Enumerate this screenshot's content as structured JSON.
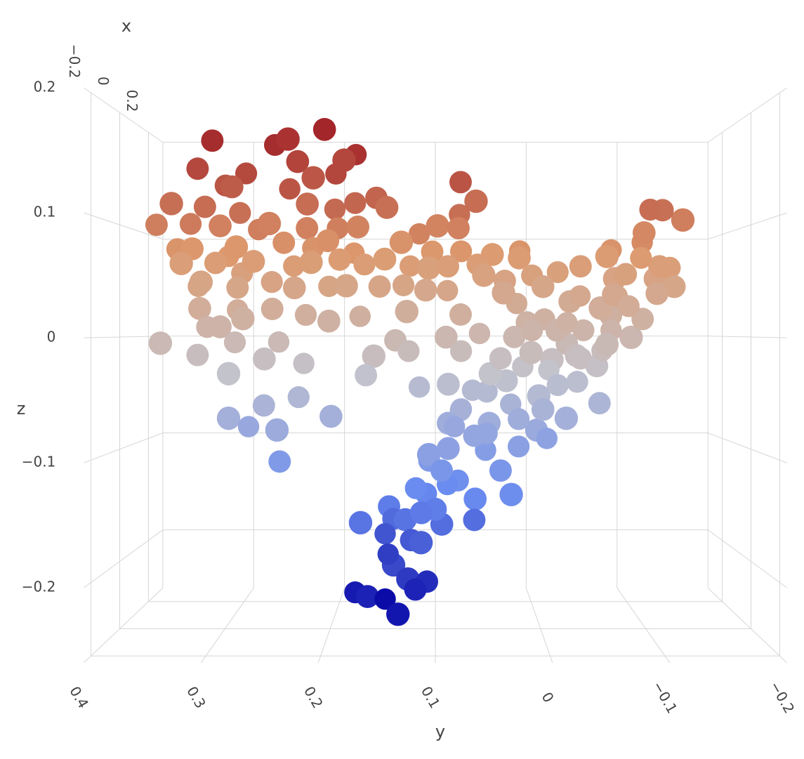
{
  "chart_data": {
    "type": "scatter3d",
    "xlabel": "x",
    "ylabel": "y",
    "zlabel": "z",
    "xlim": [
      -0.25,
      0.3
    ],
    "ylim": [
      -0.2,
      0.4
    ],
    "zlim": [
      -0.26,
      0.2
    ],
    "xticks": [
      {
        "value": -0.2,
        "label": "−0.2"
      },
      0,
      0.2
    ],
    "yticks": [
      {
        "value": -0.2,
        "label": "−0.2"
      },
      {
        "value": -0.1,
        "label": "−0.1"
      },
      0,
      0.1,
      0.2,
      0.3,
      0.4
    ],
    "zticks": [
      {
        "value": -0.2,
        "label": "−0.2"
      },
      {
        "value": -0.1,
        "label": "−0.1"
      },
      0,
      0.1,
      0.2
    ],
    "grid": true,
    "colorscale": [
      "#0b0ba8",
      "#6a8cf0",
      "#c3c3cc",
      "#dd9a6e",
      "#a3262a"
    ],
    "x": [
      0,
      0.05,
      -0.05,
      0.1,
      -0.1,
      0,
      0.05,
      -0.05,
      0.1,
      -0.1,
      0,
      0.05,
      -0.05,
      0.1,
      -0.1,
      0,
      0.05,
      -0.05,
      0.1,
      -0.1,
      0,
      0.05,
      -0.05,
      0.1,
      -0.1,
      0,
      0.05,
      -0.05,
      0.1,
      -0.1,
      0,
      0.05,
      -0.05,
      0.1,
      -0.1,
      0,
      0.05,
      -0.05,
      0.1,
      -0.1,
      0,
      0.05,
      -0.05,
      0.1,
      -0.1,
      0,
      0.05,
      -0.05,
      0.1,
      -0.1,
      0,
      0.05,
      -0.05,
      0.1,
      -0.1,
      0,
      0.05,
      -0.05,
      0.1,
      -0.1,
      0,
      0.05,
      -0.05,
      0.1,
      -0.1,
      0,
      0.05,
      -0.05,
      0.1,
      -0.1,
      0,
      0.05,
      -0.05,
      0.1,
      -0.1,
      0,
      0.05,
      -0.05,
      0.1,
      -0.1,
      0,
      0.05,
      -0.05,
      0.1,
      -0.1,
      0,
      0.05,
      -0.05,
      0.1,
      -0.1,
      0,
      0.05,
      -0.05,
      0.1,
      -0.1,
      0,
      0.05,
      -0.05,
      0.1,
      -0.1,
      0,
      0.05,
      -0.05,
      0.1,
      -0.1,
      0,
      0.05,
      -0.05,
      0.1,
      -0.1,
      0,
      0.05,
      -0.05,
      0.1,
      -0.1,
      0,
      0.05,
      -0.05,
      0.1,
      -0.1,
      0,
      0.05,
      -0.05,
      0.1,
      -0.1,
      0,
      0.05,
      -0.05,
      0.1,
      -0.1,
      0,
      0.05,
      -0.05,
      0.1,
      -0.1,
      0,
      0.05,
      -0.05,
      0.1,
      -0.1,
      0,
      0.05,
      -0.05,
      0.1,
      -0.1,
      0,
      0.05,
      -0.05,
      0.1,
      -0.1,
      0,
      0.05,
      -0.05,
      0.1,
      -0.1,
      0,
      0.05,
      -0.05,
      0.1,
      -0.1,
      0,
      0.05,
      -0.05,
      0.1,
      -0.1,
      0,
      0.05,
      -0.05,
      0.1,
      -0.1,
      0,
      0.05,
      -0.05,
      0.1,
      -0.1,
      0,
      0.05,
      -0.05,
      0.1,
      -0.1,
      0,
      0.05,
      -0.05,
      0.1,
      -0.1,
      0,
      0.05,
      -0.05,
      0.1,
      -0.1,
      0,
      0.05,
      -0.05,
      0.1,
      -0.1,
      0,
      0.05,
      -0.05,
      0.1,
      -0.1,
      0,
      0.05,
      -0.05,
      0.1,
      -0.1,
      0,
      0.05,
      -0.05,
      0.1,
      -0.1,
      0,
      0.05,
      -0.05
    ],
    "y": [
      0.312,
      0.256,
      0.203,
      0.179,
      0.234,
      0.326,
      0.284,
      0.228,
      0.199,
      0.183,
      0.076,
      0.304,
      0.289,
      0.245,
      0.211,
      0.156,
      0.178,
      0.219,
      0.2,
      0.34,
      0.319,
      0.29,
      0.145,
      0.076,
      0.063,
      0.365,
      0.338,
      0.3,
      0.276,
      0.251,
      0.222,
      0.195,
      0.172,
      0.116,
      0.098,
      0.078,
      0.351,
      0.326,
      0.306,
      0.281,
      0.244,
      0.219,
      0.2,
      0.181,
      0.131,
      0.103,
      0.075,
      0.047,
      0.016,
      0.331,
      0.309,
      0.288,
      0.269,
      0.241,
      0.213,
      0.191,
      0.169,
      0.147,
      0.125,
      0.106,
      0.088,
      0.059,
      0.022,
      0.336,
      0.313,
      0.288,
      0.259,
      0.231,
      0.206,
      0.181,
      0.153,
      0.131,
      0.109,
      0.088,
      0.056,
      0.034,
      0.006,
      0.319,
      0.297,
      0.275,
      0.255,
      0.226,
      0.199,
      0.175,
      0.126,
      0.076,
      0.322,
      0.3,
      0.256,
      0.35,
      0.326,
      0.295,
      0.259,
      0.231,
      0.156,
      0.138,
      0.126,
      0.09,
      0.056,
      0.288,
      0.166,
      0.075,
      0.088,
      0.116,
      0.288,
      0.263,
      0.233,
      0.197,
      0.286,
      0.244,
      0.248,
      0.106,
      0.088,
      0.075,
      0.168,
      0.144,
      0.141,
      0.128,
      0.15,
      0.138,
      0.123,
      0.109,
      0.094,
      0.147,
      0.125,
      0.108,
      0.178,
      0.163,
      0.15,
      0.134,
      0.119,
      0.078,
      0.063,
      0.05,
      0.031,
      0.038,
      0.019,
      0.006,
      -0.011,
      -0.019,
      -0.056,
      -0.038,
      -0.05,
      -0.066,
      -0.078,
      -0.097,
      0.05,
      0.034,
      0.013,
      -0.006,
      -0.025,
      -0.044,
      -0.063,
      -0.081,
      -0.1,
      -0.113,
      -0.128,
      -0.122,
      -0.106,
      -0.125,
      -0.116,
      -0.109,
      -0.094,
      -0.075,
      -0.056,
      -0.038,
      -0.019,
      0,
      0.019,
      0.038,
      0.013,
      -0.006,
      -0.025,
      -0.044,
      -0.063,
      -0.081,
      -0.1,
      0.05,
      0.025,
      0.006,
      0.063,
      0.05,
      0.1,
      0.088,
      0.113,
      0.063,
      0.019,
      -0.031,
      -0.013,
      0.013,
      0.025,
      0.006,
      -0.013,
      -0.031,
      -0.05,
      -0.069,
      -0.088,
      -0.106,
      -0.075,
      -0.056,
      -0.038,
      -0.019,
      0,
      0.063,
      0.05,
      0.038,
      0.075,
      0.088,
      0.081,
      0.106,
      0.094,
      0.119,
      0.113
    ],
    "z": [
      0.175,
      0.175,
      0.181,
      0.17,
      0.169,
      0.15,
      0.149,
      0.153,
      0.152,
      0.151,
      0.138,
      0.138,
      0.131,
      0.138,
      0.136,
      0.124,
      0.122,
      0.116,
      0.119,
      0.114,
      0.116,
      0.113,
      0.113,
      0.114,
      0.116,
      0.1,
      0.103,
      0.097,
      0.1,
      0.097,
      0.097,
      0.099,
      0.096,
      0.096,
      0.095,
      0.097,
      0.08,
      0.077,
      0.075,
      0.077,
      0.084,
      0.081,
      0.084,
      0.078,
      0.081,
      0.076,
      0.078,
      0.072,
      0.08,
      0.063,
      0.066,
      0.058,
      0.066,
      0.066,
      0.064,
      0.069,
      0.066,
      0.068,
      0.066,
      0.059,
      0.063,
      0.066,
      0.069,
      0.047,
      0.047,
      0.044,
      0.05,
      0.043,
      0.047,
      0.044,
      0.045,
      0.047,
      0.041,
      0.043,
      0.053,
      0.05,
      0.056,
      0.025,
      0.025,
      0.016,
      0.025,
      0.02,
      0.014,
      0.019,
      0.022,
      0.02,
      0.009,
      0.009,
      -0.005,
      -0.005,
      -0.016,
      -0.005,
      -0.019,
      -0.025,
      -0.016,
      -0.003,
      -0.013,
      0,
      0.003,
      -0.031,
      -0.034,
      -0.013,
      -0.041,
      -0.047,
      -0.069,
      -0.061,
      -0.055,
      -0.069,
      -0.084,
      -0.079,
      -0.111,
      -0.113,
      -0.097,
      -0.069,
      -0.158,
      -0.151,
      -0.166,
      -0.159,
      -0.184,
      -0.194,
      -0.181,
      -0.143,
      -0.163,
      -0.203,
      -0.206,
      -0.218,
      -0.233,
      -0.226,
      -0.245,
      -0.236,
      -0.225,
      -0.131,
      -0.141,
      -0.106,
      -0.134,
      -0.119,
      -0.1,
      -0.081,
      -0.095,
      -0.069,
      -0.059,
      -0.041,
      -0.025,
      -0.013,
      0,
      0.016,
      -0.05,
      -0.038,
      -0.028,
      -0.019,
      -0.006,
      0.006,
      0.019,
      0.038,
      0.05,
      0.063,
      0.063,
      0.044,
      0.088,
      0.1,
      0.113,
      0.116,
      0.091,
      0.081,
      0.069,
      0.063,
      0.059,
      0.044,
      0.031,
      0.038,
      0.013,
      0.016,
      0.031,
      0.038,
      0.05,
      0.056,
      0.072,
      -0.075,
      -0.063,
      -0.05,
      -0.088,
      -0.088,
      -0.15,
      -0.138,
      -0.175,
      -0.163,
      -0.075,
      -0.016,
      -0.031,
      -0.013,
      0,
      0.006,
      0.006,
      0.013,
      0.025,
      0.038,
      0.028,
      0.038,
      0.006,
      -0.006,
      -0.019,
      -0.044,
      -0.063,
      -0.05,
      -0.031,
      -0.019,
      -0.066,
      -0.075,
      -0.084,
      -0.1,
      -0.119,
      -0.138,
      -0.153
    ]
  }
}
